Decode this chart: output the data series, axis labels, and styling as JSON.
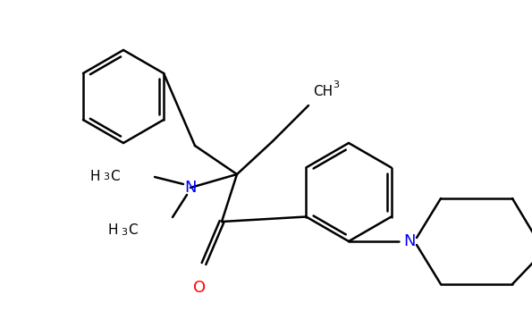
{
  "bg_color": "#ffffff",
  "bond_color": "#000000",
  "N_color": "#0000ff",
  "O_color": "#ff0000",
  "lw": 1.8,
  "figsize": [
    5.95,
    3.67
  ],
  "dpi": 100,
  "xlim": [
    0,
    595
  ],
  "ylim": [
    0,
    367
  ]
}
